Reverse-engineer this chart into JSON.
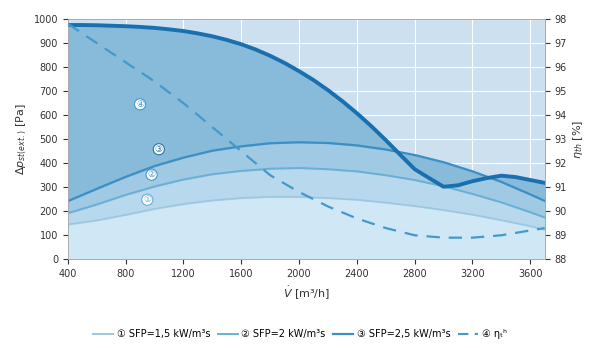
{
  "xlim": [
    400,
    3700
  ],
  "ylim_left": [
    0,
    1000
  ],
  "ylim_right": [
    88,
    98
  ],
  "xticks": [
    400,
    800,
    1200,
    1600,
    2000,
    2400,
    2800,
    3200,
    3600
  ],
  "yticks_left": [
    0,
    100,
    200,
    300,
    400,
    500,
    600,
    700,
    800,
    900,
    1000
  ],
  "yticks_right": [
    88,
    89,
    90,
    91,
    92,
    93,
    94,
    95,
    96,
    97,
    98
  ],
  "bg_color": "#cce0f0",
  "dark_blue": "#1a6faf",
  "mid_blue": "#3b8fc4",
  "light_blue1": "#6aafd6",
  "light_blue2": "#9ac8e0",
  "dashed_blue": "#4499cc",
  "grid_color": "#ffffff",
  "fan_curve_x": [
    400,
    500,
    600,
    700,
    800,
    900,
    1000,
    1100,
    1200,
    1300,
    1400,
    1500,
    1600,
    1700,
    1800,
    1900,
    2000,
    2100,
    2200,
    2300,
    2400,
    2500,
    2600,
    2700,
    2800,
    2900,
    3000,
    3100,
    3200,
    3300,
    3400,
    3500,
    3600,
    3700
  ],
  "fan_curve_y": [
    975,
    975,
    974,
    972,
    970,
    967,
    963,
    957,
    950,
    940,
    928,
    913,
    895,
    873,
    847,
    817,
    783,
    746,
    704,
    658,
    608,
    554,
    496,
    435,
    375,
    338,
    302,
    308,
    325,
    338,
    348,
    342,
    330,
    318
  ],
  "sfp1_x": [
    400,
    600,
    800,
    1000,
    1200,
    1400,
    1600,
    1800,
    2000,
    2200,
    2400,
    2600,
    2800,
    3000,
    3200,
    3400,
    3600,
    3700
  ],
  "sfp1_y": [
    145,
    162,
    185,
    210,
    230,
    245,
    255,
    260,
    260,
    255,
    248,
    236,
    222,
    205,
    186,
    163,
    138,
    123
  ],
  "sfp2_x": [
    400,
    600,
    800,
    1000,
    1200,
    1400,
    1600,
    1800,
    2000,
    2200,
    2400,
    2600,
    2800,
    3000,
    3200,
    3400,
    3600,
    3700
  ],
  "sfp2_y": [
    192,
    228,
    268,
    303,
    332,
    354,
    368,
    377,
    380,
    375,
    366,
    350,
    330,
    304,
    272,
    237,
    196,
    174
  ],
  "sfp3_x": [
    400,
    600,
    800,
    1000,
    1200,
    1400,
    1600,
    1800,
    2000,
    2200,
    2400,
    2600,
    2800,
    3000,
    3200,
    3400,
    3600,
    3700
  ],
  "sfp3_y": [
    242,
    293,
    343,
    388,
    423,
    452,
    470,
    483,
    487,
    484,
    474,
    457,
    434,
    404,
    366,
    322,
    270,
    243
  ],
  "eta_x": [
    400,
    600,
    800,
    1000,
    1200,
    1400,
    1600,
    1800,
    2000,
    2200,
    2400,
    2600,
    2800,
    3000,
    3200,
    3400,
    3600,
    3700
  ],
  "eta_y": [
    97.8,
    97.0,
    96.2,
    95.4,
    94.5,
    93.5,
    92.5,
    91.5,
    90.8,
    90.2,
    89.7,
    89.3,
    89.0,
    88.9,
    88.9,
    89.0,
    89.2,
    89.3
  ],
  "label1": "① SFP=1,5 kW/m³s",
  "label2": "② SFP=2 kW/m³s",
  "label3": "③ SFP=2,5 kW/m³s",
  "label4": "④ ηₜʰ",
  "ylabel_left": "Δpₛₜ(ext.) [Pa]",
  "ylabel_right": "ηₜʰ [%]",
  "xlabel": "Ṻ [m³/h]",
  "fill_top_color": "#b8d8ee",
  "fill_band3_color": "#aad0e8",
  "fill_band2_color": "#9ecae0",
  "fill_band1_color": "#c8e0f0",
  "ann_color1": "#6aafd6",
  "ann_color2": "#4499cc",
  "ann_color3": "#2277aa",
  "ann_color4": "#4499cc"
}
